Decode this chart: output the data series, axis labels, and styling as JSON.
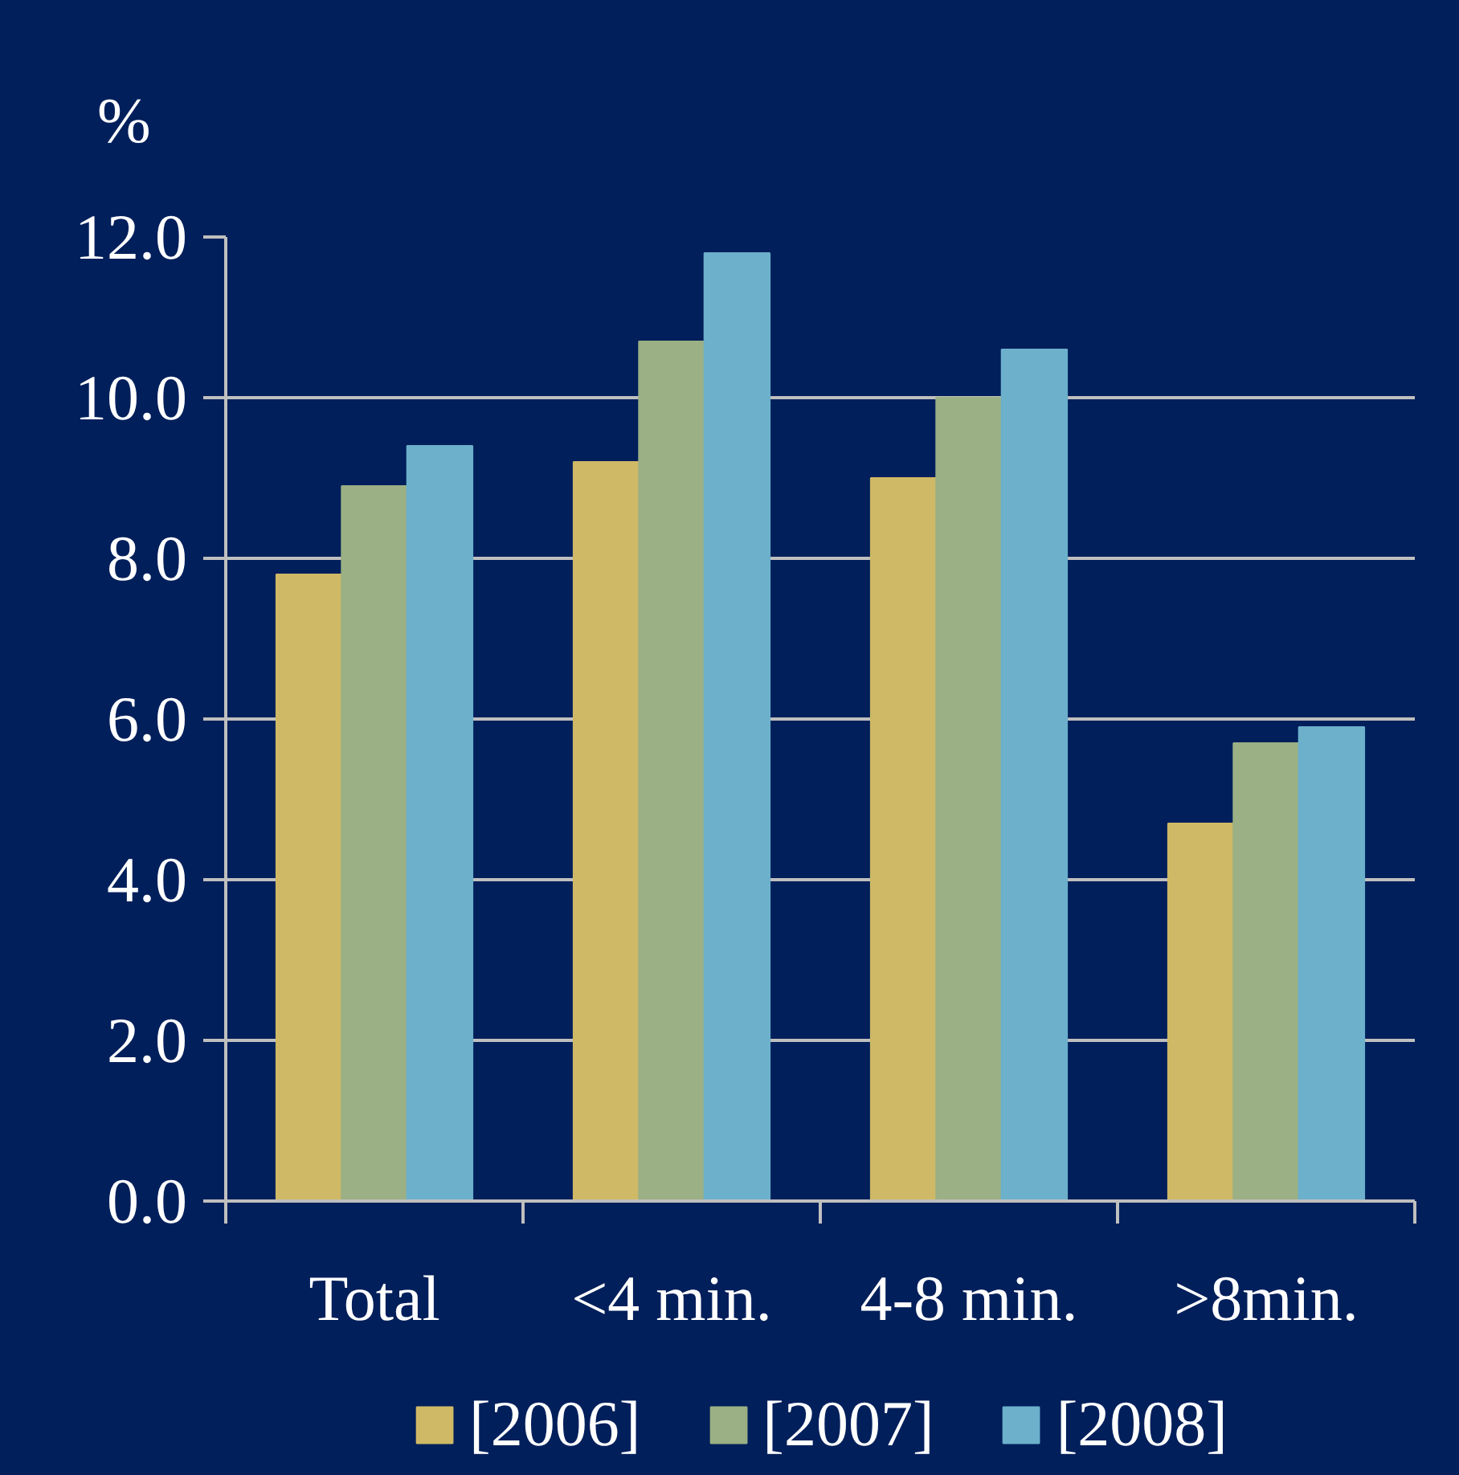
{
  "chart_data": {
    "type": "bar",
    "ylabel": "%",
    "categories": [
      "Total",
      "<4 min.",
      "4-8 min.",
      ">8min."
    ],
    "series": [
      {
        "name": "[2006]",
        "color": "#cfb966",
        "values": [
          7.8,
          9.2,
          9.0,
          4.7
        ]
      },
      {
        "name": "[2007]",
        "color": "#9bb084",
        "values": [
          8.9,
          10.7,
          10.0,
          5.7
        ]
      },
      {
        "name": "[2008]",
        "color": "#6cb0cc",
        "values": [
          9.4,
          11.8,
          10.6,
          5.9
        ]
      }
    ],
    "ylim": [
      0,
      12
    ],
    "yticks": [
      {
        "value": 0,
        "label": "0.0"
      },
      {
        "value": 2,
        "label": "2.0"
      },
      {
        "value": 4,
        "label": "4.0"
      },
      {
        "value": 6,
        "label": "6.0"
      },
      {
        "value": 8,
        "label": "8.0"
      },
      {
        "value": 10,
        "label": "10.0"
      },
      {
        "value": 12,
        "label": "12.0"
      }
    ],
    "grid": "y",
    "legend": "bottom"
  }
}
